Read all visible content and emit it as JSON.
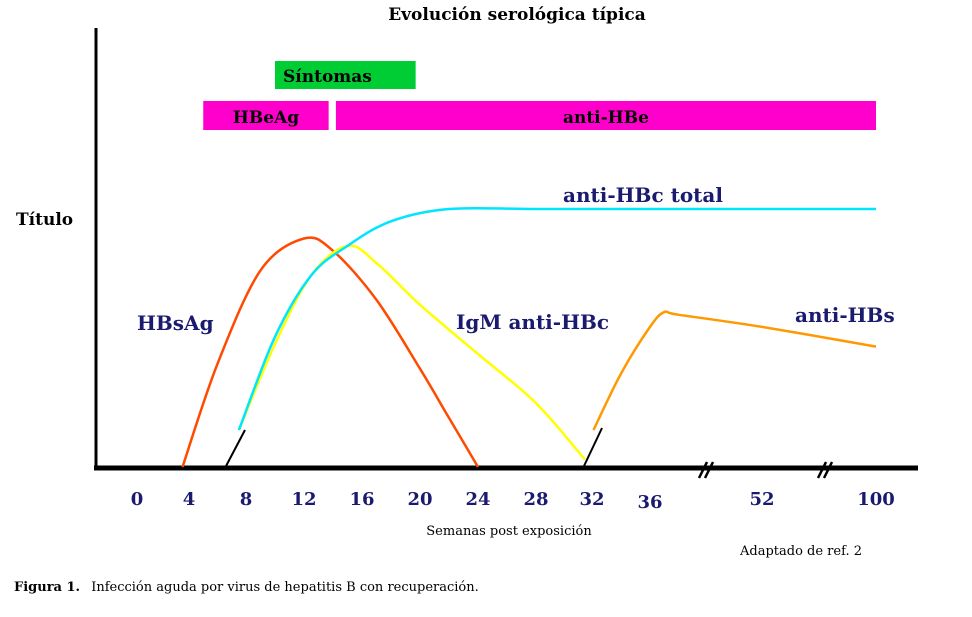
{
  "chart_data": {
    "type": "line",
    "title": "Evolución serológica típica",
    "ylabel": "Título",
    "xlabel": "Semanas post exposición",
    "x_ticks": [
      "0",
      "4",
      "8",
      "12",
      "16",
      "20",
      "24",
      "28",
      "32",
      "36",
      "52",
      "100"
    ],
    "grid": false,
    "bands": [
      {
        "label": "Síntomas",
        "color": "#00cc33",
        "start": 10,
        "end": 19.7
      },
      {
        "label": "HBeAg",
        "color": "#ff00cc",
        "start": 5,
        "end": 13.7
      },
      {
        "label": "anti-HBe",
        "color": "#ff00cc",
        "start": 14.2,
        "end": 100
      }
    ],
    "series": [
      {
        "name": "HBsAg",
        "color": "#ff4a00",
        "points": [
          [
            3.5,
            0
          ],
          [
            6,
            42
          ],
          [
            9,
            80
          ],
          [
            12,
            93
          ],
          [
            14,
            88
          ],
          [
            17,
            68
          ],
          [
            20,
            40
          ],
          [
            22,
            20
          ],
          [
            24,
            0
          ]
        ]
      },
      {
        "name": "IgM anti-HBc",
        "color": "#ffff00",
        "points": [
          [
            7.5,
            15
          ],
          [
            10,
            50
          ],
          [
            12.5,
            78
          ],
          [
            15,
            90
          ],
          [
            17,
            83
          ],
          [
            20,
            66
          ],
          [
            24,
            46
          ],
          [
            28,
            26
          ],
          [
            31.5,
            3
          ]
        ]
      },
      {
        "name": "anti-HBc total",
        "color": "#00e5ff",
        "points": [
          [
            7.5,
            15
          ],
          [
            10,
            53
          ],
          [
            12.5,
            78
          ],
          [
            15,
            90
          ],
          [
            18,
            100
          ],
          [
            22,
            105
          ],
          [
            28,
            105
          ],
          [
            36,
            105
          ],
          [
            52,
            105
          ],
          [
            100,
            105
          ]
        ]
      },
      {
        "name": "anti-HBs",
        "color": "#ff9900",
        "points": [
          [
            32.1,
            15
          ],
          [
            34,
            38
          ],
          [
            36,
            57
          ],
          [
            38,
            63
          ],
          [
            40,
            62
          ],
          [
            52,
            57
          ],
          [
            100,
            49
          ]
        ]
      }
    ]
  },
  "labels": {
    "source_note": "Adaptado de ref. 2",
    "figure_caption_bold": "Figura 1.",
    "figure_caption_text": "Infección aguda por virus de hepatitis B con recuperación."
  }
}
